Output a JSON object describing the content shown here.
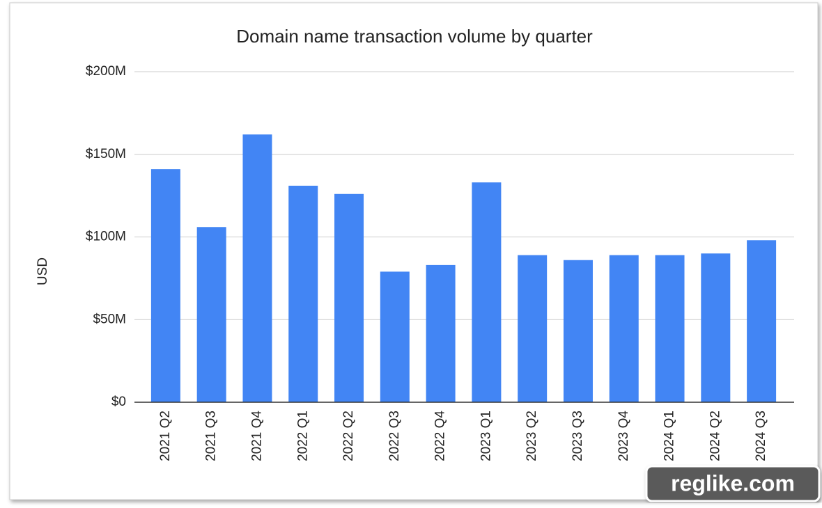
{
  "chart_data": {
    "type": "bar",
    "title": "Domain name transaction volume by quarter",
    "y_label": "USD",
    "categories": [
      "2021 Q2",
      "2021 Q3",
      "2021 Q4",
      "2022 Q1",
      "2022 Q2",
      "2022 Q3",
      "2022 Q4",
      "2023 Q1",
      "2023 Q2",
      "2023 Q3",
      "2023 Q4",
      "2024 Q1",
      "2024 Q2",
      "2024 Q3"
    ],
    "values": [
      141000000,
      106000000,
      162000000,
      131000000,
      126000000,
      79000000,
      83000000,
      133000000,
      89000000,
      86000000,
      89000000,
      89000000,
      90000000,
      98000000
    ],
    "color": "#4285f4",
    "ylim": [
      0,
      200000000
    ],
    "yticks": [
      {
        "value": 0,
        "label": "$0"
      },
      {
        "value": 50000000,
        "label": "$50M"
      },
      {
        "value": 100000000,
        "label": "$100M"
      },
      {
        "value": 150000000,
        "label": "$150M"
      },
      {
        "value": 200000000,
        "label": "$200M"
      }
    ],
    "grid": true
  },
  "watermark": "reglike.com"
}
